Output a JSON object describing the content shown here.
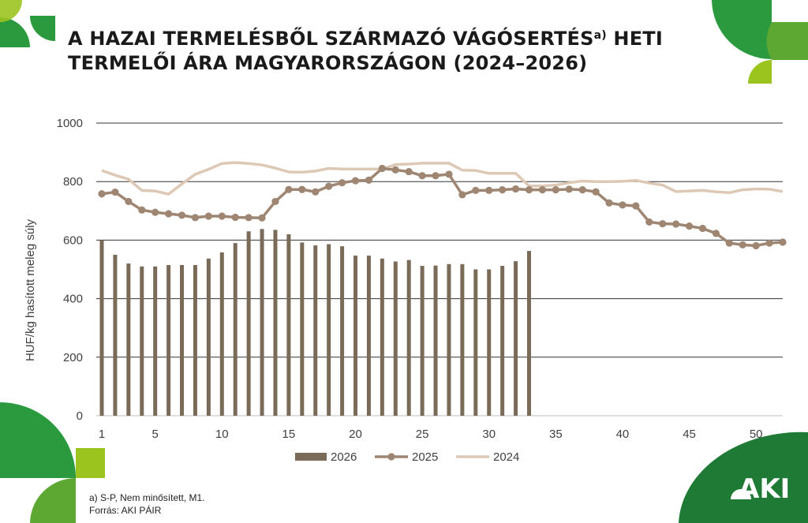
{
  "title": {
    "line1_a": "A HAZAI TERMELÉSBŐL SZÁRMAZÓ VÁGÓSERTÉS",
    "sup": "a)",
    "line1_b": " HETI",
    "line2": "TERMELŐI ÁRA MAGYARORSZÁGON (2024–2026)"
  },
  "notes": {
    "footnote": "a) S-P, Nem minősített, M1.",
    "source": "Forrás: AKI PÁIR"
  },
  "logo_text": "AKI",
  "colors": {
    "bar_2026": "#7a6a58",
    "line_2025": "#9e8672",
    "line_2024": "#ddc8b5",
    "brand_green": "#1e8a3a",
    "brand_light_green": "#9cc41f"
  },
  "chart_data": {
    "type": "bar+line",
    "ylabel": "HUF/kg hasított meleg súly",
    "ylim": [
      0,
      1000
    ],
    "yticks": [
      0,
      200,
      400,
      600,
      800,
      1000
    ],
    "xticks": [
      1,
      5,
      10,
      15,
      20,
      25,
      30,
      35,
      40,
      45,
      50
    ],
    "grid": true,
    "legend_position": "bottom",
    "series": [
      {
        "name": "2026",
        "kind": "bar",
        "x": [
          1,
          2,
          3,
          4,
          5,
          6,
          7,
          8,
          9,
          10,
          11,
          12,
          13,
          14,
          15,
          16,
          17,
          18,
          19,
          20,
          21,
          22,
          23,
          24,
          25,
          26,
          27,
          28,
          29,
          30,
          31,
          32,
          33
        ],
        "values": [
          600,
          550,
          520,
          510,
          510,
          515,
          515,
          515,
          537,
          558,
          590,
          630,
          638,
          635,
          620,
          592,
          582,
          586,
          579,
          547,
          547,
          537,
          527,
          532,
          512,
          513,
          518,
          518,
          500,
          500,
          512,
          528,
          563
        ]
      },
      {
        "name": "2025",
        "kind": "line-marker",
        "x": [
          1,
          2,
          3,
          4,
          5,
          6,
          7,
          8,
          9,
          10,
          11,
          12,
          13,
          14,
          15,
          16,
          17,
          18,
          19,
          20,
          21,
          22,
          23,
          24,
          25,
          26,
          27,
          28,
          29,
          30,
          31,
          32,
          33,
          34,
          35,
          36,
          37,
          38,
          39,
          40,
          41,
          42,
          43,
          44,
          45,
          46,
          47,
          48,
          49,
          50,
          51,
          52
        ],
        "values": [
          758,
          764,
          732,
          703,
          695,
          690,
          685,
          677,
          682,
          682,
          678,
          677,
          676,
          732,
          773,
          773,
          765,
          784,
          796,
          803,
          805,
          845,
          840,
          834,
          820,
          820,
          825,
          755,
          770,
          770,
          772,
          775,
          772,
          772,
          772,
          774,
          772,
          765,
          727,
          720,
          717,
          662,
          656,
          655,
          648,
          640,
          623,
          590,
          584,
          581,
          590,
          593
        ]
      },
      {
        "name": "2024",
        "kind": "line",
        "x": [
          1,
          2,
          3,
          4,
          5,
          6,
          7,
          8,
          9,
          10,
          11,
          12,
          13,
          14,
          15,
          16,
          17,
          18,
          19,
          20,
          21,
          22,
          23,
          24,
          25,
          26,
          27,
          28,
          29,
          30,
          31,
          32,
          33,
          34,
          35,
          36,
          37,
          38,
          39,
          40,
          41,
          42,
          43,
          44,
          45,
          46,
          47,
          48,
          49,
          50,
          51,
          52
        ],
        "values": [
          838,
          822,
          808,
          770,
          768,
          757,
          792,
          825,
          842,
          862,
          865,
          862,
          857,
          846,
          833,
          832,
          836,
          845,
          843,
          843,
          843,
          843,
          858,
          860,
          863,
          863,
          863,
          839,
          838,
          828,
          828,
          828,
          785,
          785,
          788,
          796,
          802,
          800,
          800,
          801,
          804,
          795,
          788,
          766,
          768,
          770,
          765,
          762,
          772,
          775,
          774,
          766
        ]
      }
    ]
  }
}
